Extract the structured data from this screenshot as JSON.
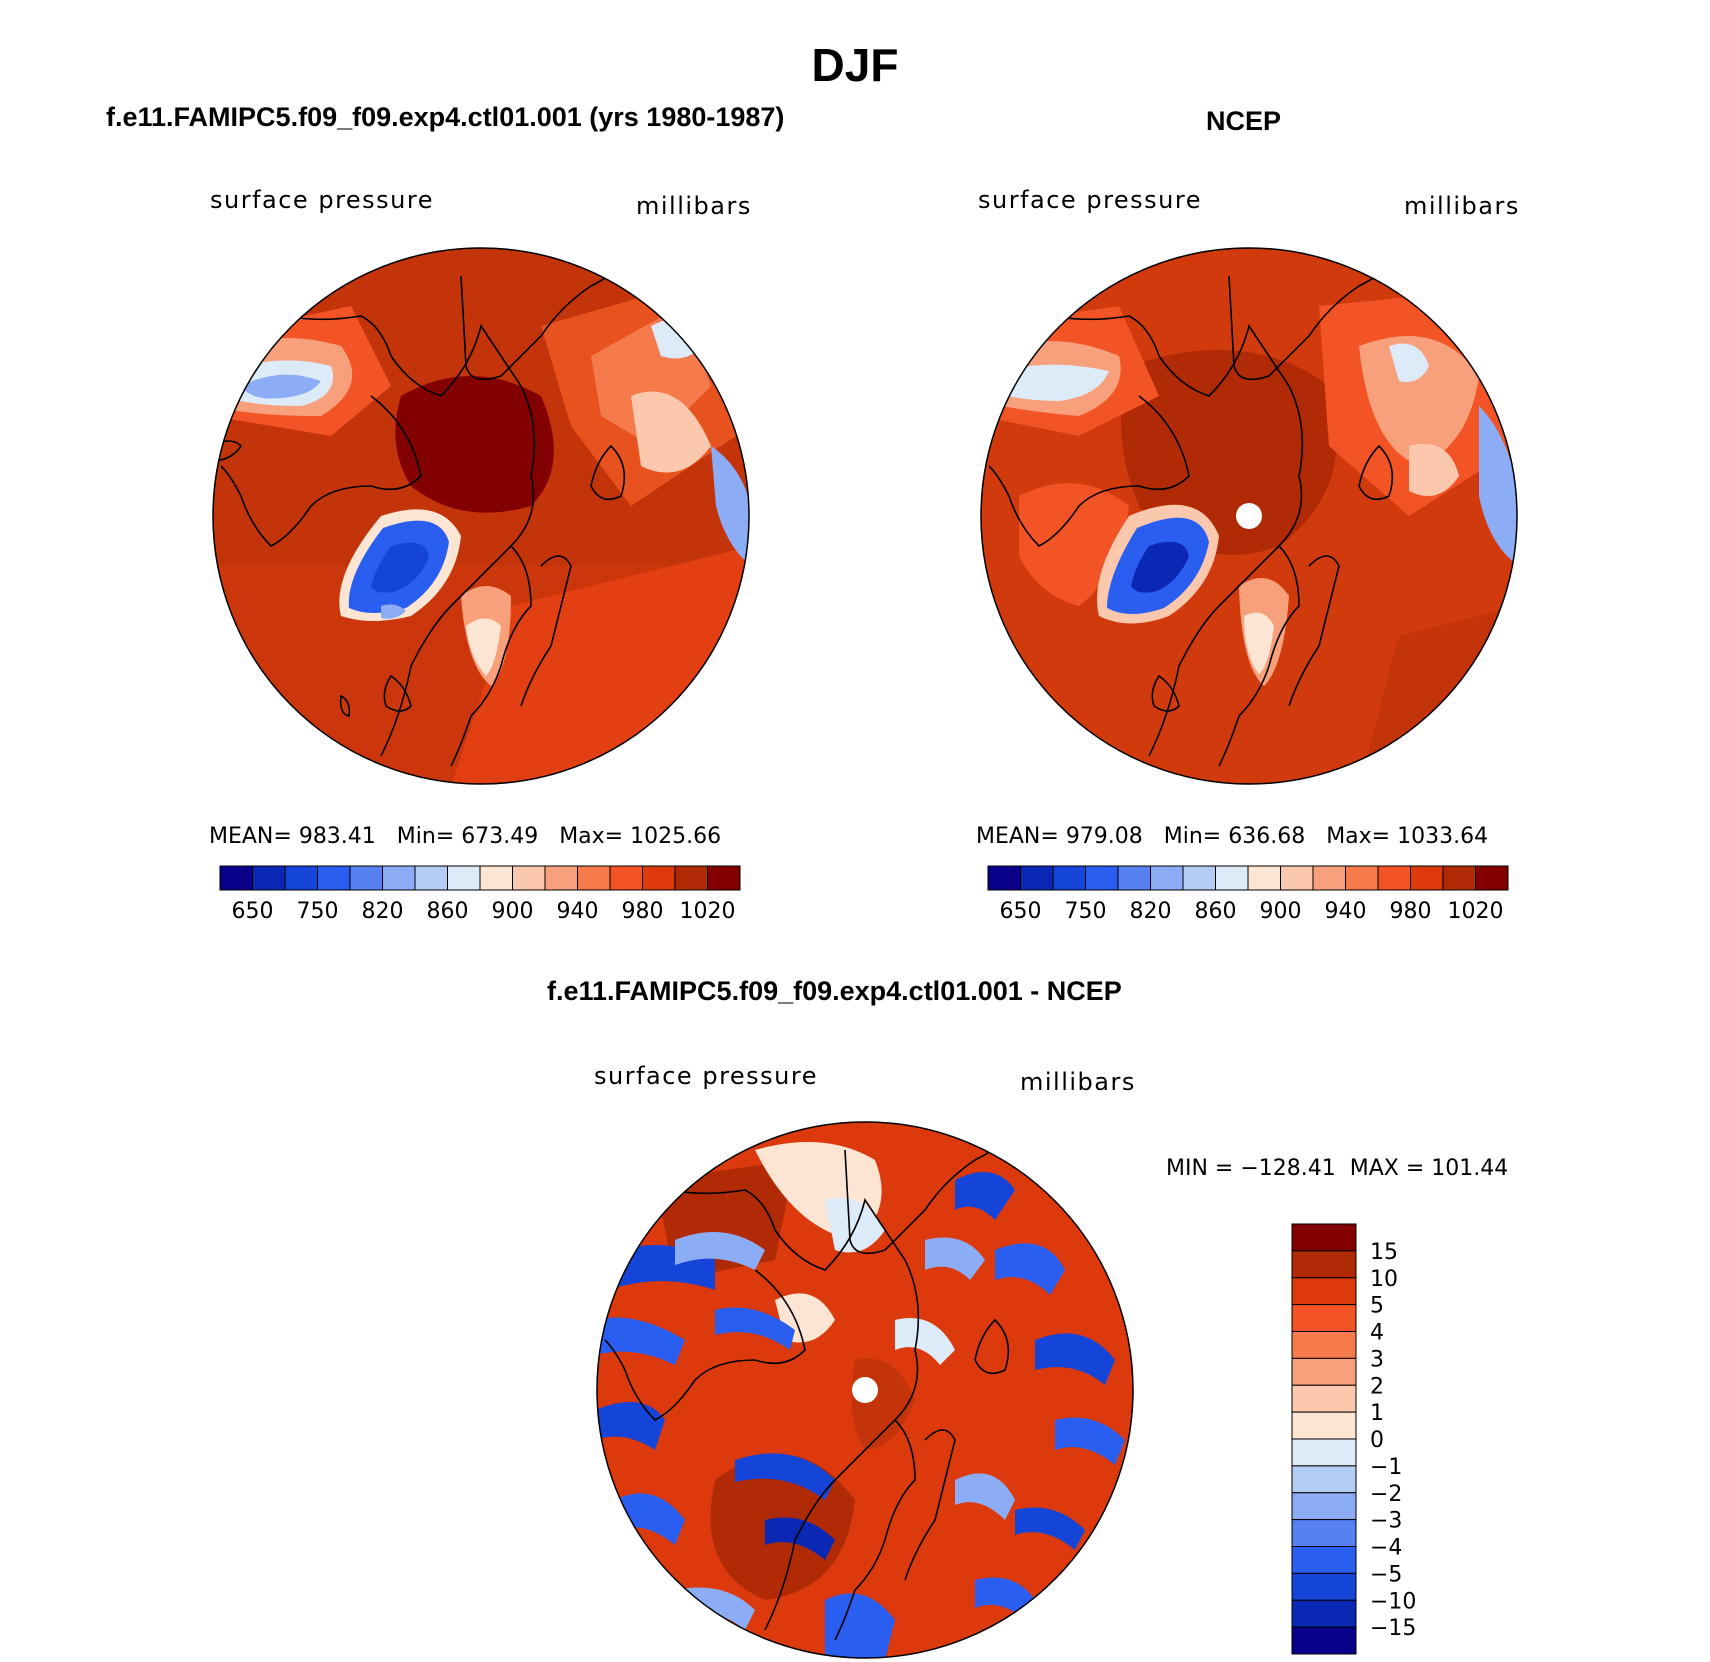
{
  "figure": {
    "title": "DJF"
  },
  "panels": [
    {
      "title": "f.e11.FAMIPC5.f09_f09.exp4.ctl01.001 (yrs 1980-1987)",
      "left_label": "surface pressure",
      "right_label": "millibars",
      "stats": "MEAN= 983.41   Min= 673.49   Max= 1025.66",
      "colorbar": {
        "tick_labels": [
          "650",
          "750",
          "820",
          "860",
          "900",
          "940",
          "980",
          "1020"
        ],
        "colors": [
          "#08008a",
          "#0a28b4",
          "#1444d8",
          "#2a5ef0",
          "#5582f0",
          "#8cacf5",
          "#b4cdf5",
          "#ddeaf8",
          "#fde5d4",
          "#fbc8ae",
          "#f8a07c",
          "#f57a4c",
          "#f25426",
          "#dc3a0c",
          "#b02a05",
          "#820000"
        ]
      }
    },
    {
      "title": "NCEP",
      "left_label": "surface pressure",
      "right_label": "millibars",
      "stats": "MEAN= 979.08   Min= 636.68   Max= 1033.64",
      "colorbar": {
        "tick_labels": [
          "650",
          "750",
          "820",
          "860",
          "900",
          "940",
          "980",
          "1020"
        ],
        "colors": [
          "#08008a",
          "#0a28b4",
          "#1444d8",
          "#2a5ef0",
          "#5582f0",
          "#8cacf5",
          "#b4cdf5",
          "#ddeaf8",
          "#fde5d4",
          "#fbc8ae",
          "#f8a07c",
          "#f57a4c",
          "#f25426",
          "#dc3a0c",
          "#b02a05",
          "#820000"
        ]
      }
    },
    {
      "title": "f.e11.FAMIPC5.f09_f09.exp4.ctl01.001 - NCEP",
      "left_label": "surface pressure",
      "right_label": "millibars",
      "stats": "MIN = −128.41  MAX = 101.44",
      "colorbar": {
        "tick_labels": [
          "15",
          "10",
          "5",
          "4",
          "3",
          "2",
          "1",
          "0",
          "−1",
          "−2",
          "−3",
          "−4",
          "−5",
          "−10",
          "−15"
        ],
        "colors": [
          "#820000",
          "#b02a05",
          "#dc3a0c",
          "#f25426",
          "#f57a4c",
          "#f8a07c",
          "#fbc8ae",
          "#fde5d4",
          "#ddeaf8",
          "#b4cdf5",
          "#8cacf5",
          "#5582f0",
          "#2a5ef0",
          "#1444d8",
          "#0a28b4",
          "#08008a"
        ]
      }
    }
  ]
}
